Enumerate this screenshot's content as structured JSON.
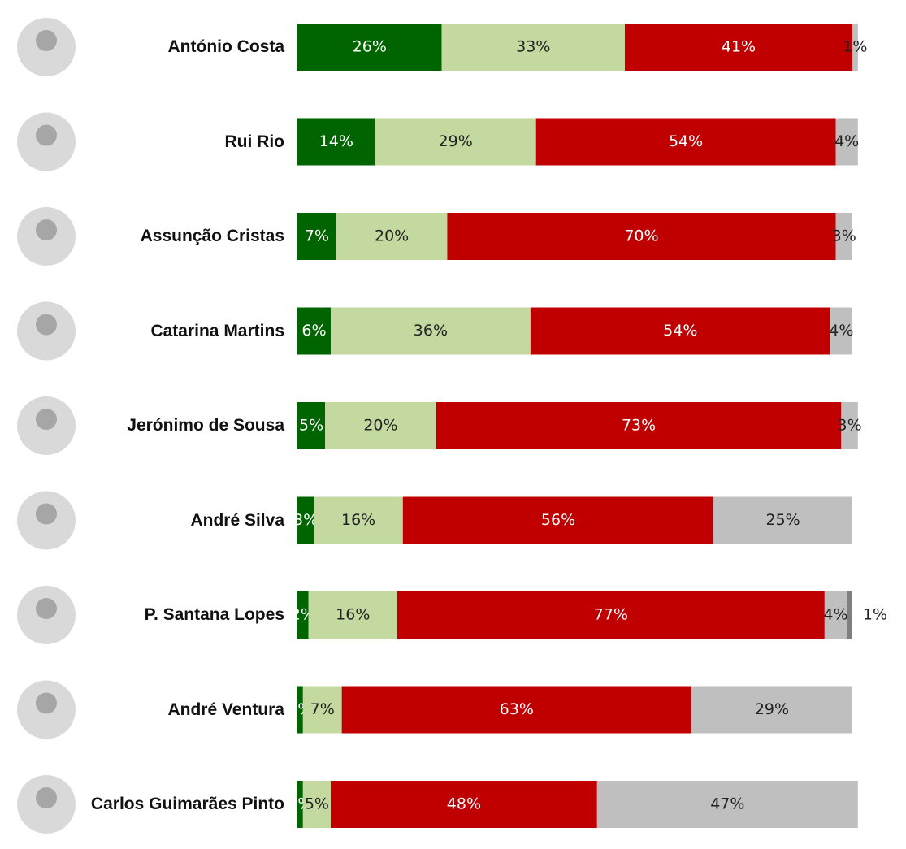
{
  "chart_data": {
    "type": "stacked-bar-horizontal",
    "categories": [
      "António Costa",
      "Rui Rio",
      "Assunção Cristas",
      "Catarina Martins",
      "Jerónimo de Sousa",
      "André Silva",
      "P. Santana Lopes",
      "André Ventura",
      "Carlos Guimarães Pinto"
    ],
    "series": [
      {
        "color": "#006400",
        "values": [
          26,
          14,
          7,
          6,
          5,
          3,
          2,
          1,
          1
        ]
      },
      {
        "color": "#c4d9a0",
        "values": [
          33,
          29,
          20,
          36,
          20,
          16,
          16,
          7,
          5
        ]
      },
      {
        "color": "#c00000",
        "values": [
          41,
          54,
          70,
          54,
          73,
          56,
          77,
          63,
          48
        ]
      },
      {
        "color": "#bfbfbf",
        "values": [
          1,
          4,
          3,
          4,
          3,
          25,
          4,
          29,
          47
        ]
      },
      {
        "color": "#7f7f7f",
        "values": [
          null,
          null,
          null,
          null,
          null,
          null,
          1,
          null,
          null
        ]
      }
    ],
    "value_labels": [
      [
        "26%",
        "14%",
        "7%",
        "6%",
        "5%",
        "3%",
        "2%",
        "1%",
        "1%"
      ],
      [
        "33%",
        "29%",
        "20%",
        "36%",
        "20%",
        "16%",
        "16%",
        "7%",
        "5%"
      ],
      [
        "41%",
        "54%",
        "70%",
        "54%",
        "73%",
        "56%",
        "77%",
        "63%",
        "48%"
      ],
      [
        "1%",
        "4%",
        "3%",
        "4%",
        "3%",
        "25%",
        "4%",
        "29%",
        "47%"
      ],
      [
        null,
        null,
        null,
        null,
        null,
        null,
        "1%",
        null,
        null
      ]
    ]
  }
}
